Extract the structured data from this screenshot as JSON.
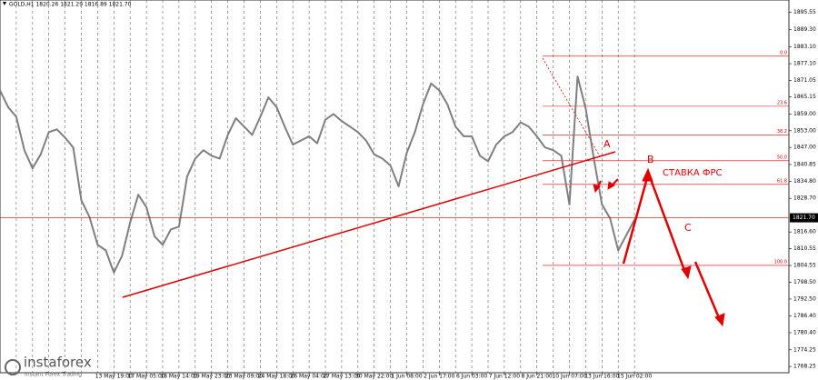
{
  "chart_data": {
    "type": "line",
    "title": "GOLD,H1 1820.26 1821.29 1816.89 1821.70",
    "categories": [
      null,
      null,
      null,
      null,
      null,
      null,
      null,
      null,
      null,
      null,
      null,
      null,
      null,
      null,
      "13 May 19:00",
      null,
      null,
      null,
      "17 May 05:00",
      null,
      null,
      null,
      "18 May 14:00",
      null,
      null,
      null,
      "19 May 23:00",
      null,
      null,
      null,
      "23 May 09:00",
      null,
      null,
      null,
      "24 May 18:00",
      null,
      null,
      null,
      "26 May 04:00",
      null,
      null,
      null,
      "27 May 13:00",
      null,
      null,
      null,
      "30 May 22:00",
      null,
      null,
      null,
      "1 Jun 08:00",
      null,
      null,
      null,
      "2 Jun 17:00",
      null,
      null,
      null,
      "6 Jun 03:00",
      null,
      null,
      null,
      "7 Jun 12:00",
      null,
      null,
      null,
      "8 Jun 21:00",
      null,
      null,
      null,
      "10 Jun 07:00",
      null,
      null,
      null,
      "13 Jun 16:00",
      null,
      null,
      null,
      "15 Jun 02:00"
    ],
    "series": [
      {
        "name": "GOLD",
        "color": "#7f7f7f",
        "values": [
          1867.5,
          1861.5,
          1858,
          1846,
          1839.5,
          1844.5,
          1852.5,
          1853.5,
          1850.5,
          1847,
          1828,
          1822,
          1812,
          1810,
          1802,
          1808,
          1820,
          1830,
          1825.5,
          1815,
          1812,
          1817.5,
          1818.5,
          1836.5,
          1843,
          1846,
          1844,
          1843,
          1851.5,
          1857.5,
          1854.5,
          1851.5,
          1858,
          1865,
          1861.5,
          1854.5,
          1848,
          1849.5,
          1851,
          1848.5,
          1857,
          1859,
          1856.5,
          1854.5,
          1852.5,
          1849.5,
          1844.5,
          1843,
          1840.5,
          1833,
          1845,
          1852.5,
          1862.5,
          1870,
          1867.5,
          1862.5,
          1854.5,
          1851,
          1851,
          1844,
          1842,
          1848,
          1851,
          1852.5,
          1856,
          1854.5,
          1851,
          1847,
          1846,
          1844,
          1826.5,
          1872.5,
          1861,
          1843,
          1826.5,
          1821.5,
          1810,
          1815.5,
          1821
        ]
      }
    ],
    "ylim": [
      1766,
      1900
    ],
    "yticks": [
      {
        "value": 1895.55,
        "label": "1895.55"
      },
      {
        "value": 1889.3,
        "label": "1889.30"
      },
      {
        "value": 1883.1,
        "label": "1883.10"
      },
      {
        "value": 1877.1,
        "label": "1877.10"
      },
      {
        "value": 1871.05,
        "label": "1871.05"
      },
      {
        "value": 1865.15,
        "label": "1865.15"
      },
      {
        "value": 1859.0,
        "label": "1859.00"
      },
      {
        "value": 1853.0,
        "label": "1853.00"
      },
      {
        "value": 1847.0,
        "label": "1847.00"
      },
      {
        "value": 1840.85,
        "label": "1840.85"
      },
      {
        "value": 1834.8,
        "label": "1834.80"
      },
      {
        "value": 1828.7,
        "label": "1828.70"
      },
      {
        "value": 1816.6,
        "label": "1816.60"
      },
      {
        "value": 1810.55,
        "label": "1810.55"
      },
      {
        "value": 1804.55,
        "label": "1804.55"
      },
      {
        "value": 1798.5,
        "label": "1798.50"
      },
      {
        "value": 1792.5,
        "label": "1792.50"
      },
      {
        "value": 1786.4,
        "label": "1786.40"
      },
      {
        "value": 1780.4,
        "label": "1780.40"
      },
      {
        "value": 1774.25,
        "label": "1774.25"
      },
      {
        "value": 1768.25,
        "label": "1768.25"
      }
    ],
    "last_price": {
      "value": 1821.7,
      "label": "1821.70"
    },
    "fib_levels": [
      {
        "value": 1879.8,
        "label": "0.0"
      },
      {
        "value": 1861.8,
        "label": "23.6"
      },
      {
        "value": 1851.4,
        "label": "38.2"
      },
      {
        "value": 1842.2,
        "label": "50.0"
      },
      {
        "value": 1833.7,
        "label": "61.8"
      },
      {
        "value": 1804.6,
        "label": "100.0"
      }
    ],
    "annotations": [
      "A",
      "B",
      "C",
      "СТАВКА ФРС"
    ],
    "watermark": "instaforex",
    "watermark_sub": "Instant Forex Trading",
    "grid": true
  }
}
